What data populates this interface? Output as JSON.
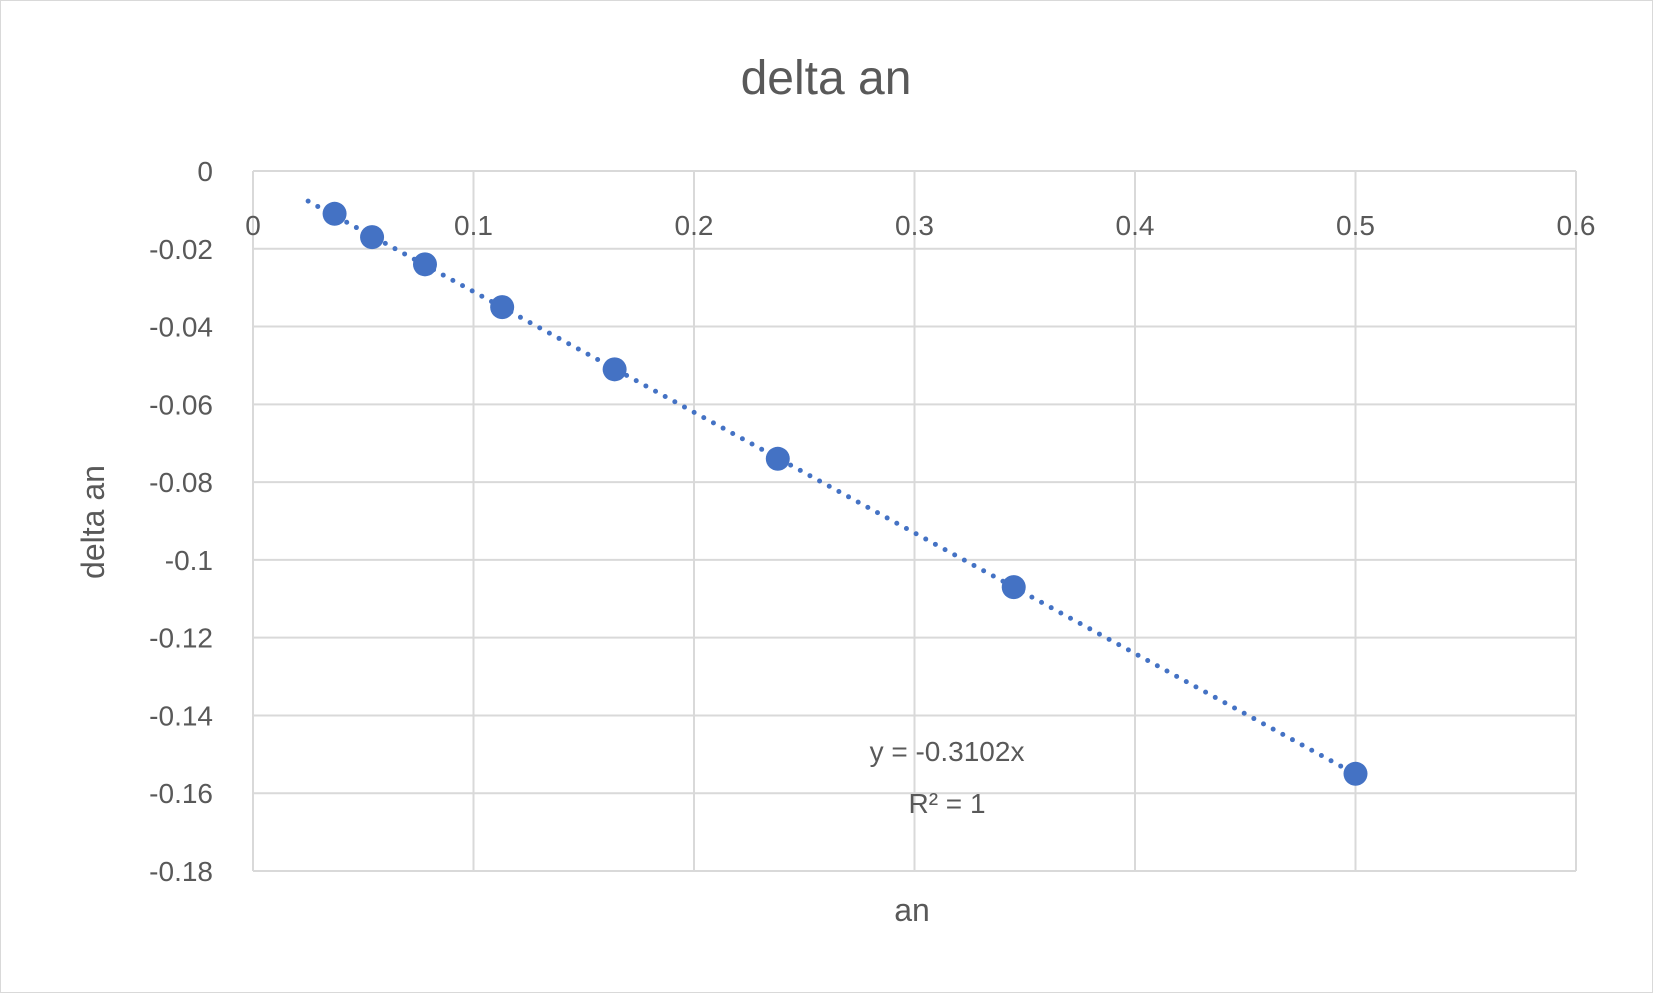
{
  "chart_data": {
    "type": "scatter",
    "title": "delta an",
    "xlabel": "an",
    "ylabel": "delta an",
    "xlim": [
      0,
      0.6
    ],
    "ylim": [
      -0.18,
      0
    ],
    "x_ticks": [
      0,
      0.1,
      0.2,
      0.3,
      0.4,
      0.5,
      0.6
    ],
    "x_tick_labels": [
      "0",
      "0.1",
      "0.2",
      "0.3",
      "0.4",
      "0.5",
      "0.6"
    ],
    "y_ticks": [
      0,
      -0.02,
      -0.04,
      -0.06,
      -0.08,
      -0.1,
      -0.12,
      -0.14,
      -0.16,
      -0.18
    ],
    "y_tick_labels": [
      "0",
      "-0.02",
      "-0.04",
      "-0.06",
      "-0.08",
      "-0.1",
      "-0.12",
      "-0.14",
      "-0.16",
      "-0.18"
    ],
    "grid": true,
    "legend": "none",
    "series": [
      {
        "x": [
          0.037,
          0.054,
          0.078,
          0.113,
          0.164,
          0.238,
          0.345,
          0.5
        ],
        "y": [
          -0.011,
          -0.017,
          -0.024,
          -0.035,
          -0.051,
          -0.074,
          -0.107,
          -0.155
        ],
        "color": "#4472c4"
      }
    ],
    "trendline": {
      "type": "linear",
      "slope": -0.3102,
      "intercept": 0,
      "x_range": [
        0.025,
        0.5
      ],
      "style": "dotted",
      "color": "#4472c4",
      "equation_label": "y = -0.3102x",
      "r2_label": "R² = 1"
    }
  }
}
